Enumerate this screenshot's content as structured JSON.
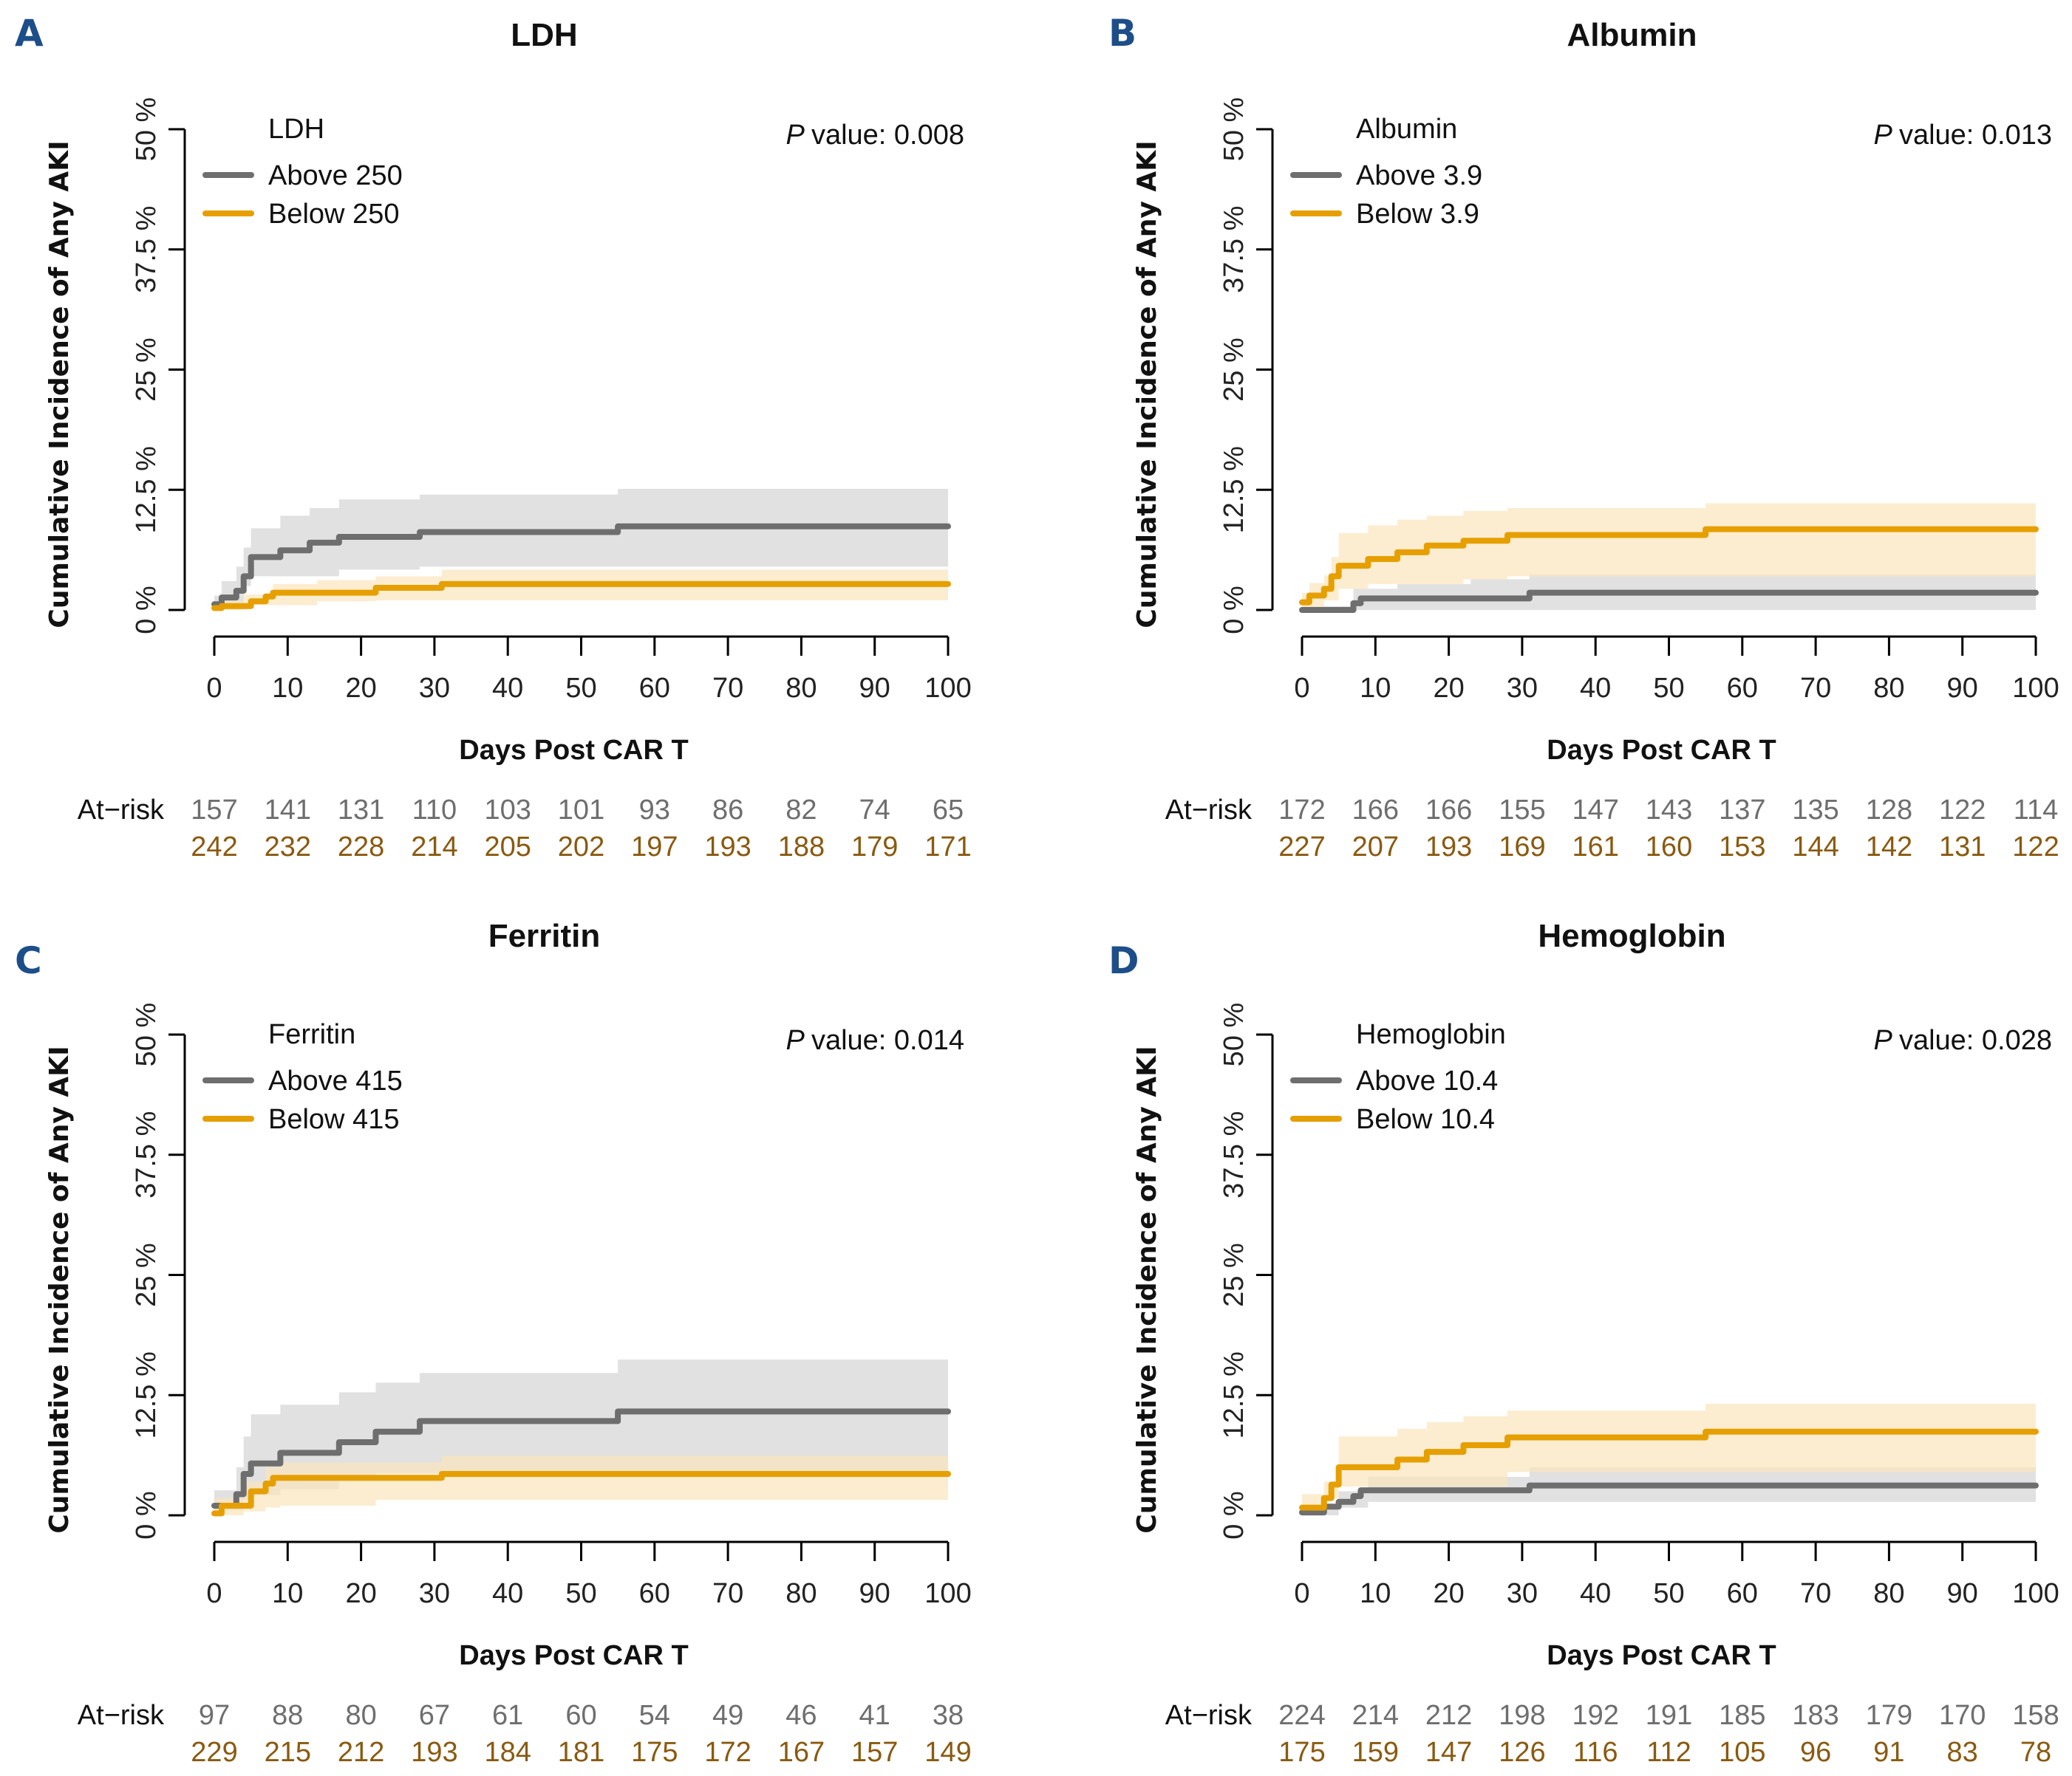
{
  "colors": {
    "above": "#6e6e6e",
    "below": "#e69f00",
    "above_band": "#d9d9d9",
    "below_band": "#fbe6bd",
    "risk_above": "#6e6e6e",
    "risk_below": "#8a5a10",
    "panel_letter": "#1d4e89"
  },
  "chart_data": [
    {
      "type": "line",
      "panel": "A",
      "title": "LDH",
      "xlabel": "Days Post CAR T",
      "ylabel": "Cumulative Incidence of Any AKI",
      "xlim": [
        0,
        100
      ],
      "ylim": [
        0,
        50
      ],
      "x_ticks": [
        "0",
        "10",
        "20",
        "30",
        "40",
        "50",
        "60",
        "70",
        "80",
        "90",
        "100"
      ],
      "y_ticks": [
        "0 %",
        "12.5 %",
        "25 %",
        "37.5 %",
        "50 %"
      ],
      "legend_title": "LDH",
      "legend_position": "top-left",
      "p_value_label": "P",
      "p_value_text": "value:",
      "p_value": "0.008",
      "series": [
        {
          "name": "Above 250",
          "group": "above",
          "steps": [
            [
              0,
              0.6
            ],
            [
              1,
              1.3
            ],
            [
              3,
              2.0
            ],
            [
              4,
              3.5
            ],
            [
              5,
              5.5
            ],
            [
              9,
              6.2
            ],
            [
              13,
              7.0
            ],
            [
              17,
              7.6
            ],
            [
              28,
              8.1
            ],
            [
              55,
              8.7
            ],
            [
              100,
              8.7
            ]
          ],
          "ci_upper": [
            [
              0,
              1.5
            ],
            [
              1,
              3.0
            ],
            [
              3,
              4.5
            ],
            [
              4,
              6.5
            ],
            [
              5,
              8.5
            ],
            [
              9,
              9.8
            ],
            [
              13,
              10.6
            ],
            [
              17,
              11.5
            ],
            [
              28,
              12.0
            ],
            [
              55,
              12.6
            ],
            [
              100,
              12.6
            ]
          ],
          "ci_lower": [
            [
              0,
              0
            ],
            [
              3,
              0.3
            ],
            [
              5,
              2.5
            ],
            [
              9,
              3.5
            ],
            [
              28,
              4.2
            ],
            [
              55,
              4.5
            ],
            [
              100,
              4.5
            ]
          ]
        },
        {
          "name": "Below 250",
          "group": "below",
          "steps": [
            [
              0,
              0.2
            ],
            [
              1,
              0.4
            ],
            [
              5,
              0.9
            ],
            [
              7,
              1.4
            ],
            [
              8,
              1.8
            ],
            [
              22,
              2.3
            ],
            [
              31,
              2.7
            ],
            [
              100,
              2.7
            ]
          ],
          "ci_upper": [
            [
              0,
              0.9
            ],
            [
              4,
              1.6
            ],
            [
              8,
              2.7
            ],
            [
              14,
              3.1
            ],
            [
              22,
              3.5
            ],
            [
              31,
              4.2
            ],
            [
              55,
              4.2
            ],
            [
              100,
              4.2
            ]
          ],
          "ci_lower": [
            [
              0,
              0
            ],
            [
              8,
              0.5
            ],
            [
              22,
              0.9
            ],
            [
              31,
              1.0
            ],
            [
              100,
              1.0
            ]
          ]
        }
      ],
      "at_risk": {
        "label": "At−risk",
        "above": [
          "157",
          "141",
          "131",
          "110",
          "103",
          "101",
          "93",
          "86",
          "82",
          "74",
          "65"
        ],
        "below": [
          "242",
          "232",
          "228",
          "214",
          "205",
          "202",
          "197",
          "193",
          "188",
          "179",
          "171"
        ]
      }
    },
    {
      "type": "line",
      "panel": "B",
      "title": "Albumin",
      "xlabel": "Days Post CAR T",
      "ylabel": "Cumulative Incidence of Any AKI",
      "xlim": [
        0,
        100
      ],
      "ylim": [
        0,
        50
      ],
      "x_ticks": [
        "0",
        "10",
        "20",
        "30",
        "40",
        "50",
        "60",
        "70",
        "80",
        "90",
        "100"
      ],
      "y_ticks": [
        "0 %",
        "12.5 %",
        "25 %",
        "37.5 %",
        "50 %"
      ],
      "legend_title": "Albumin",
      "legend_position": "top-left",
      "p_value_label": "P",
      "p_value_text": "value:",
      "p_value": "0.013",
      "series": [
        {
          "name": "Above 3.9",
          "group": "above",
          "steps": [
            [
              0,
              0
            ],
            [
              7,
              0.7
            ],
            [
              8,
              1.2
            ],
            [
              31,
              1.8
            ],
            [
              100,
              1.8
            ]
          ],
          "ci_upper": [
            [
              0,
              0.4
            ],
            [
              7,
              2.2
            ],
            [
              13,
              2.7
            ],
            [
              23,
              3.2
            ],
            [
              31,
              3.7
            ],
            [
              55,
              3.7
            ],
            [
              100,
              3.7
            ]
          ],
          "ci_lower": [
            [
              0,
              0
            ],
            [
              100,
              0
            ]
          ]
        },
        {
          "name": "Below 3.9",
          "group": "below",
          "steps": [
            [
              0,
              0.8
            ],
            [
              1,
              1.5
            ],
            [
              3,
              2.2
            ],
            [
              4,
              3.5
            ],
            [
              5,
              4.6
            ],
            [
              9,
              5.3
            ],
            [
              13,
              6.0
            ],
            [
              17,
              6.7
            ],
            [
              22,
              7.2
            ],
            [
              28,
              7.8
            ],
            [
              55,
              8.4
            ],
            [
              100,
              8.4
            ]
          ],
          "ci_upper": [
            [
              0,
              1.8
            ],
            [
              1,
              2.8
            ],
            [
              3,
              3.6
            ],
            [
              4,
              5.5
            ],
            [
              5,
              8.0
            ],
            [
              9,
              8.8
            ],
            [
              13,
              9.4
            ],
            [
              17,
              9.8
            ],
            [
              22,
              10.3
            ],
            [
              28,
              10.6
            ],
            [
              55,
              11.1
            ],
            [
              100,
              11.1
            ]
          ],
          "ci_lower": [
            [
              0,
              0
            ],
            [
              4,
              1.0
            ],
            [
              8,
              2.2
            ],
            [
              13,
              2.7
            ],
            [
              23,
              3.2
            ],
            [
              31,
              3.5
            ],
            [
              55,
              3.5
            ],
            [
              100,
              3.5
            ]
          ]
        }
      ],
      "at_risk": {
        "label": "At−risk",
        "above": [
          "172",
          "166",
          "166",
          "155",
          "147",
          "143",
          "137",
          "135",
          "128",
          "122",
          "114"
        ],
        "below": [
          "227",
          "207",
          "193",
          "169",
          "161",
          "160",
          "153",
          "144",
          "142",
          "131",
          "122"
        ]
      }
    },
    {
      "type": "line",
      "panel": "C",
      "title": "Ferritin",
      "xlabel": "Days Post CAR T",
      "ylabel": "Cumulative Incidence of Any AKI",
      "xlim": [
        0,
        100
      ],
      "ylim": [
        0,
        50
      ],
      "x_ticks": [
        "0",
        "10",
        "20",
        "30",
        "40",
        "50",
        "60",
        "70",
        "80",
        "90",
        "100"
      ],
      "y_ticks": [
        "0 %",
        "12.5 %",
        "25 %",
        "37.5 %",
        "50 %"
      ],
      "legend_title": "Ferritin",
      "legend_position": "top-left",
      "p_value_label": "P",
      "p_value_text": "value:",
      "p_value": "0.014",
      "series": [
        {
          "name": "Above 415",
          "group": "above",
          "steps": [
            [
              0,
              1.0
            ],
            [
              3,
              2.2
            ],
            [
              4,
              4.3
            ],
            [
              5,
              5.4
            ],
            [
              9,
              6.5
            ],
            [
              17,
              7.6
            ],
            [
              22,
              8.7
            ],
            [
              28,
              9.8
            ],
            [
              55,
              10.8
            ],
            [
              100,
              10.8
            ]
          ],
          "ci_upper": [
            [
              0,
              2.6
            ],
            [
              3,
              5.0
            ],
            [
              4,
              8.2
            ],
            [
              5,
              10.5
            ],
            [
              9,
              11.5
            ],
            [
              17,
              12.8
            ],
            [
              22,
              13.8
            ],
            [
              28,
              14.8
            ],
            [
              55,
              16.2
            ],
            [
              100,
              16.2
            ]
          ],
          "ci_lower": [
            [
              0,
              0
            ],
            [
              3,
              0.5
            ],
            [
              5,
              1.6
            ],
            [
              9,
              2.1
            ],
            [
              17,
              2.7
            ],
            [
              22,
              3.6
            ],
            [
              28,
              4.4
            ],
            [
              55,
              4.4
            ],
            [
              100,
              4.4
            ]
          ]
        },
        {
          "name": "Below 415",
          "group": "below",
          "steps": [
            [
              0,
              0.2
            ],
            [
              1,
              1.0
            ],
            [
              5,
              2.5
            ],
            [
              7,
              3.3
            ],
            [
              8,
              3.9
            ],
            [
              31,
              4.3
            ],
            [
              100,
              4.3
            ]
          ],
          "ci_upper": [
            [
              0,
              1.8
            ],
            [
              4,
              3.5
            ],
            [
              7,
              5.0
            ],
            [
              9,
              5.5
            ],
            [
              31,
              6.2
            ],
            [
              55,
              6.2
            ],
            [
              100,
              6.2
            ]
          ],
          "ci_lower": [
            [
              0,
              0
            ],
            [
              5,
              0.4
            ],
            [
              9,
              0.8
            ],
            [
              22,
              1.0
            ],
            [
              31,
              1.6
            ],
            [
              100,
              1.6
            ]
          ]
        }
      ],
      "at_risk": {
        "label": "At−risk",
        "above": [
          "97",
          "88",
          "80",
          "67",
          "61",
          "60",
          "54",
          "49",
          "46",
          "41",
          "38"
        ],
        "below": [
          "229",
          "215",
          "212",
          "193",
          "184",
          "181",
          "175",
          "172",
          "167",
          "157",
          "149"
        ]
      }
    },
    {
      "type": "line",
      "panel": "D",
      "title": "Hemoglobin",
      "xlabel": "Days Post CAR T",
      "ylabel": "Cumulative Incidence of Any AKI",
      "xlim": [
        0,
        100
      ],
      "ylim": [
        0,
        50
      ],
      "x_ticks": [
        "0",
        "10",
        "20",
        "30",
        "40",
        "50",
        "60",
        "70",
        "80",
        "90",
        "100"
      ],
      "y_ticks": [
        "0 %",
        "12.5 %",
        "25 %",
        "37.5 %",
        "50 %"
      ],
      "legend_title": "Hemoglobin",
      "legend_position": "top-left",
      "p_value_label": "P",
      "p_value_text": "value:",
      "p_value": "0.028",
      "series": [
        {
          "name": "Above 10.4",
          "group": "above",
          "steps": [
            [
              0,
              0.3
            ],
            [
              3,
              0.9
            ],
            [
              5,
              1.4
            ],
            [
              7,
              2.0
            ],
            [
              8,
              2.6
            ],
            [
              31,
              3.1
            ],
            [
              100,
              3.1
            ]
          ],
          "ci_upper": [
            [
              0,
              1.0
            ],
            [
              5,
              2.5
            ],
            [
              9,
              4.0
            ],
            [
              31,
              5.0
            ],
            [
              55,
              5.0
            ],
            [
              100,
              5.0
            ]
          ],
          "ci_lower": [
            [
              0,
              0
            ],
            [
              9,
              0.8
            ],
            [
              31,
              1.4
            ],
            [
              100,
              1.4
            ]
          ]
        },
        {
          "name": "Below 10.4",
          "group": "below",
          "steps": [
            [
              0,
              0.8
            ],
            [
              3,
              1.8
            ],
            [
              4,
              3.2
            ],
            [
              5,
              5.0
            ],
            [
              13,
              5.8
            ],
            [
              17,
              6.6
            ],
            [
              22,
              7.3
            ],
            [
              28,
              8.1
            ],
            [
              55,
              8.7
            ],
            [
              100,
              8.7
            ]
          ],
          "ci_upper": [
            [
              0,
              2.2
            ],
            [
              3,
              3.5
            ],
            [
              5,
              8.2
            ],
            [
              13,
              9.0
            ],
            [
              17,
              9.7
            ],
            [
              22,
              10.3
            ],
            [
              28,
              10.9
            ],
            [
              55,
              11.6
            ],
            [
              100,
              11.6
            ]
          ],
          "ci_lower": [
            [
              0,
              0
            ],
            [
              5,
              1.8
            ],
            [
              9,
              3.0
            ],
            [
              31,
              4.5
            ],
            [
              55,
              4.5
            ],
            [
              100,
              4.5
            ]
          ]
        }
      ],
      "at_risk": {
        "label": "At−risk",
        "above": [
          "224",
          "214",
          "212",
          "198",
          "192",
          "191",
          "185",
          "183",
          "179",
          "170",
          "158"
        ],
        "below": [
          "175",
          "159",
          "147",
          "126",
          "116",
          "112",
          "105",
          "96",
          "91",
          "83",
          "78"
        ]
      }
    }
  ]
}
